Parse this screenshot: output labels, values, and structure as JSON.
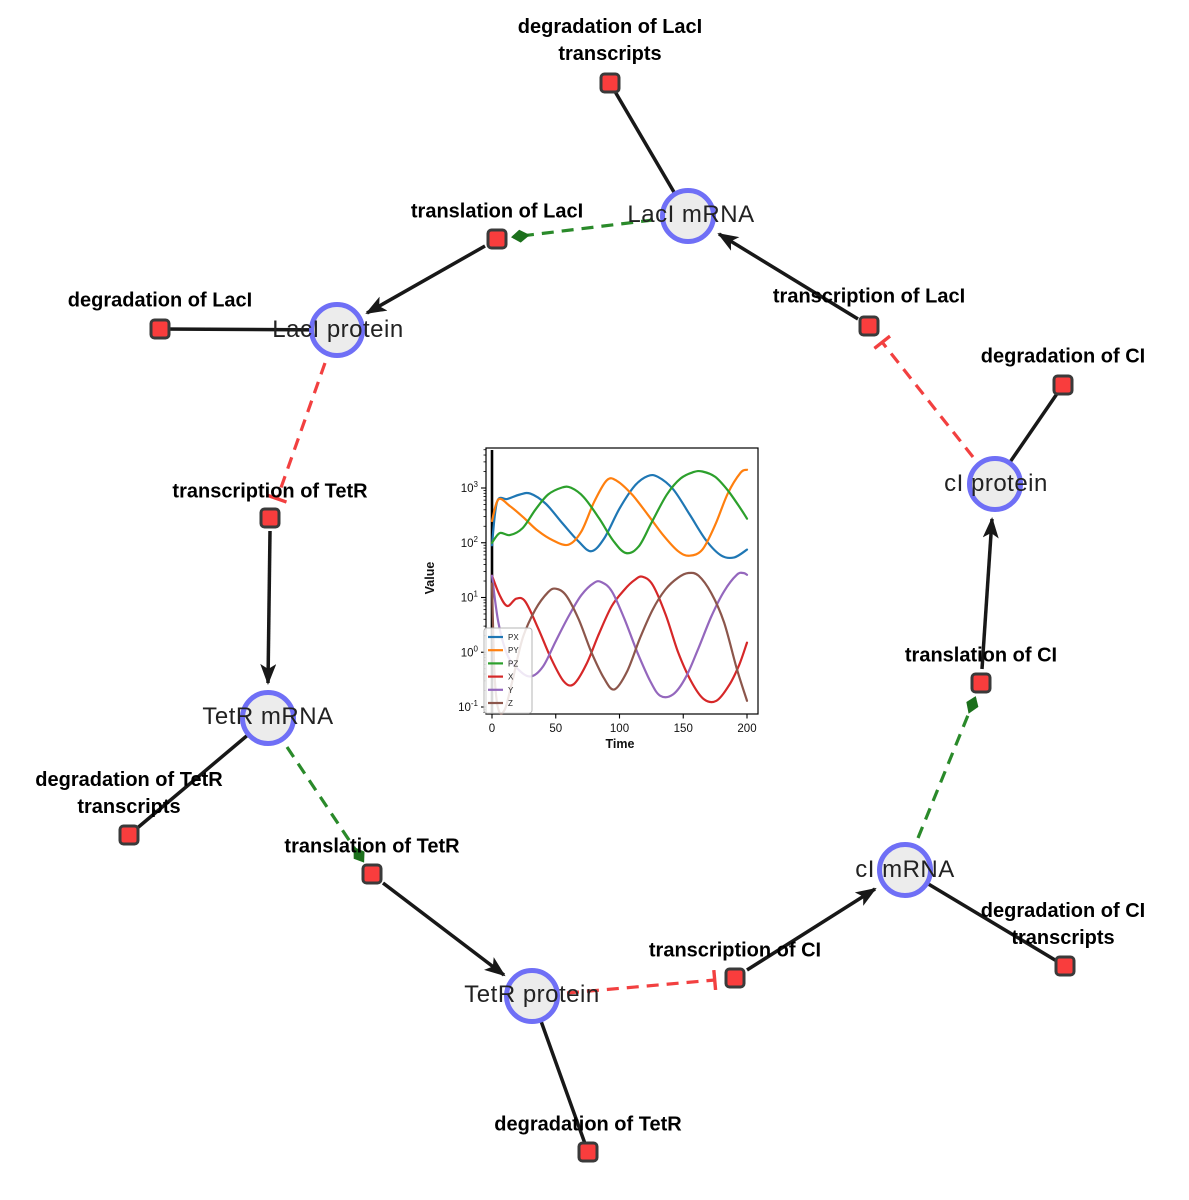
{
  "diagram": {
    "colors": {
      "species_fill": "#ececec",
      "species_border": "#6f6ff6",
      "reaction_fill": "#f93d3d",
      "reaction_border": "#3a3a3a",
      "production_edge": "#181818",
      "modifier_edge": "#2a8a2a",
      "modifier_arrowhead": "#1c701c",
      "inhibition_edge": "#f24040"
    },
    "species": [
      {
        "label": "LacI mRNA"
      },
      {
        "label": "LacI protein"
      },
      {
        "label": "cI protein"
      },
      {
        "label": "TetR mRNA"
      },
      {
        "label": "cI mRNA"
      },
      {
        "label": "TetR protein"
      }
    ],
    "reactions": [
      {
        "label": "degradation of LacI transcripts"
      },
      {
        "label": "translation of LacI"
      },
      {
        "label": "degradation of LacI"
      },
      {
        "label": "transcription of LacI"
      },
      {
        "label": "degradation of CI"
      },
      {
        "label": "transcription of TetR"
      },
      {
        "label": "degradation of TetR transcripts"
      },
      {
        "label": "translation of TetR"
      },
      {
        "label": "translation of CI"
      },
      {
        "label": "transcription of CI"
      },
      {
        "label": "degradation of CI transcripts"
      },
      {
        "label": "degradation of TetR"
      }
    ]
  },
  "chart_data": {
    "type": "line",
    "title": "",
    "xlabel": "Time",
    "ylabel": "Value",
    "yscale": "log",
    "xlim": [
      -4.7,
      208.7
    ],
    "ylim": [
      0.074,
      5000
    ],
    "x_ticks": [
      0,
      50,
      100,
      150,
      200
    ],
    "y_tick_exponents": [
      -1,
      0,
      1,
      2,
      3
    ],
    "grid": false,
    "legend_position": "lower left",
    "vline_x": 0,
    "series": [
      {
        "name": "PX",
        "color": "#1f77b4",
        "points": [
          [
            0,
            90
          ],
          [
            4,
            560
          ],
          [
            12,
            630
          ],
          [
            22,
            760
          ],
          [
            30,
            790
          ],
          [
            42,
            520
          ],
          [
            55,
            230
          ],
          [
            68,
            105
          ],
          [
            78,
            70
          ],
          [
            88,
            120
          ],
          [
            100,
            420
          ],
          [
            112,
            1100
          ],
          [
            122,
            1650
          ],
          [
            130,
            1600
          ],
          [
            142,
            950
          ],
          [
            155,
            330
          ],
          [
            168,
            110
          ],
          [
            180,
            58
          ],
          [
            190,
            54
          ],
          [
            200,
            75
          ]
        ]
      },
      {
        "name": "PY",
        "color": "#ff7f0e",
        "points": [
          [
            0,
            250
          ],
          [
            5,
            620
          ],
          [
            14,
            470
          ],
          [
            25,
            285
          ],
          [
            36,
            165
          ],
          [
            48,
            110
          ],
          [
            60,
            92
          ],
          [
            70,
            160
          ],
          [
            80,
            550
          ],
          [
            90,
            1380
          ],
          [
            98,
            1350
          ],
          [
            110,
            750
          ],
          [
            122,
            330
          ],
          [
            134,
            140
          ],
          [
            146,
            70
          ],
          [
            155,
            58
          ],
          [
            165,
            75
          ],
          [
            175,
            210
          ],
          [
            185,
            800
          ],
          [
            195,
            1900
          ],
          [
            200,
            2150
          ]
        ]
      },
      {
        "name": "PZ",
        "color": "#2ca02c",
        "points": [
          [
            0,
            100
          ],
          [
            6,
            150
          ],
          [
            14,
            138
          ],
          [
            24,
            185
          ],
          [
            34,
            400
          ],
          [
            44,
            760
          ],
          [
            55,
            1020
          ],
          [
            62,
            1010
          ],
          [
            72,
            680
          ],
          [
            84,
            280
          ],
          [
            95,
            110
          ],
          [
            105,
            65
          ],
          [
            115,
            85
          ],
          [
            125,
            230
          ],
          [
            137,
            750
          ],
          [
            148,
            1500
          ],
          [
            158,
            1950
          ],
          [
            165,
            2000
          ],
          [
            175,
            1600
          ],
          [
            185,
            900
          ],
          [
            195,
            420
          ],
          [
            200,
            275
          ]
        ]
      },
      {
        "name": "X",
        "color": "#d62728",
        "points": [
          [
            0,
            25
          ],
          [
            6,
            11
          ],
          [
            12,
            7
          ],
          [
            19,
            9.5
          ],
          [
            26,
            8.5
          ],
          [
            36,
            2.8
          ],
          [
            46,
            0.8
          ],
          [
            56,
            0.3
          ],
          [
            64,
            0.26
          ],
          [
            74,
            0.6
          ],
          [
            84,
            2.2
          ],
          [
            94,
            7
          ],
          [
            104,
            14
          ],
          [
            112,
            21
          ],
          [
            118,
            24
          ],
          [
            126,
            17
          ],
          [
            136,
            5
          ],
          [
            146,
            1
          ],
          [
            156,
            0.3
          ],
          [
            166,
            0.14
          ],
          [
            176,
            0.13
          ],
          [
            186,
            0.25
          ],
          [
            194,
            0.6
          ],
          [
            200,
            1.5
          ]
        ]
      },
      {
        "name": "Y",
        "color": "#9467bd",
        "points": [
          [
            0,
            25
          ],
          [
            5,
            3.5
          ],
          [
            12,
            0.9
          ],
          [
            20,
            0.5
          ],
          [
            30,
            0.36
          ],
          [
            40,
            0.55
          ],
          [
            50,
            1.6
          ],
          [
            60,
            4.5
          ],
          [
            70,
            11
          ],
          [
            80,
            18.5
          ],
          [
            86,
            19
          ],
          [
            94,
            13
          ],
          [
            104,
            4
          ],
          [
            114,
            1
          ],
          [
            124,
            0.3
          ],
          [
            132,
            0.16
          ],
          [
            142,
            0.17
          ],
          [
            152,
            0.35
          ],
          [
            162,
            1.2
          ],
          [
            172,
            4.5
          ],
          [
            182,
            13
          ],
          [
            192,
            26
          ],
          [
            197,
            28
          ],
          [
            200,
            26
          ]
        ]
      },
      {
        "name": "Z",
        "color": "#8c564b",
        "points": [
          [
            0,
            18
          ],
          [
            2,
            0.4
          ],
          [
            5,
            0.09
          ],
          [
            10,
            0.09
          ],
          [
            16,
            0.3
          ],
          [
            24,
            1.8
          ],
          [
            34,
            6
          ],
          [
            44,
            12.5
          ],
          [
            50,
            14.5
          ],
          [
            58,
            11
          ],
          [
            68,
            4
          ],
          [
            78,
            1
          ],
          [
            88,
            0.33
          ],
          [
            96,
            0.21
          ],
          [
            106,
            0.45
          ],
          [
            116,
            1.8
          ],
          [
            126,
            6
          ],
          [
            136,
            14
          ],
          [
            146,
            23
          ],
          [
            154,
            28
          ],
          [
            162,
            25
          ],
          [
            172,
            12
          ],
          [
            182,
            3.5
          ],
          [
            192,
            0.5
          ],
          [
            200,
            0.13
          ]
        ]
      }
    ]
  }
}
